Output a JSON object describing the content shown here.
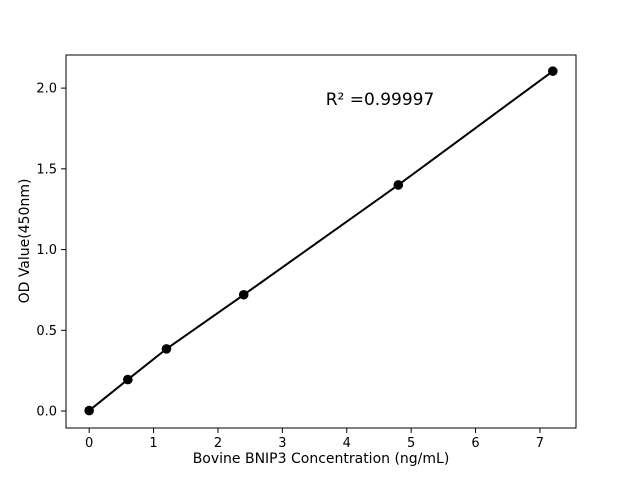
{
  "figure": {
    "background": "#ffffff",
    "frame_color": "#000000"
  },
  "chart_data": {
    "type": "scatter",
    "title": "",
    "xlabel": "Bovine BNIP3 Concentration (ng/mL)",
    "ylabel": "OD Value(450nm)",
    "x": [
      0,
      0.6,
      1.2,
      2.4,
      4.8,
      7.2
    ],
    "y": [
      0.003,
      0.195,
      0.385,
      0.72,
      1.4,
      2.105
    ],
    "xlim": [
      -0.36,
      7.56
    ],
    "ylim": [
      -0.105,
      2.205
    ],
    "xticks": [
      "0",
      "1",
      "2",
      "3",
      "4",
      "5",
      "6",
      "7"
    ],
    "yticks": [
      "0.0",
      "0.5",
      "1.0",
      "1.5",
      "2.0"
    ],
    "grid": false,
    "legend": null,
    "line": {
      "show": true,
      "color": "#000000",
      "width": 2
    },
    "marker": {
      "shape": "circle",
      "color": "#000000",
      "radius": 4.8
    },
    "annotation": {
      "text": "R² =0.99997",
      "x": 4.52,
      "y": 1.93
    }
  }
}
